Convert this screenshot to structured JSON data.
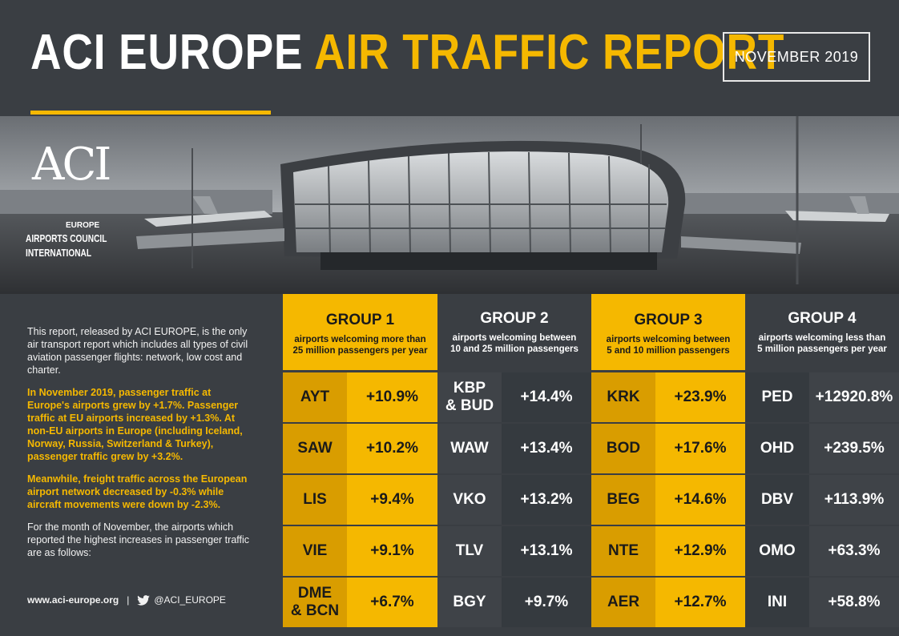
{
  "header": {
    "title_white": "ACI EUROPE",
    "title_yellow": "AIR TRAFFIC REPORT",
    "date": "NOVEMBER 2019"
  },
  "logo": {
    "mark": "ACI",
    "region": "EUROPE",
    "line1": "AIRPORTS COUNCIL",
    "line2": "INTERNATIONAL"
  },
  "intro": {
    "p1": "This report, released by ACI EUROPE, is the only air transport report which includes all types of civil aviation passenger flights: network, low cost and charter.",
    "p2": "In November 2019, passenger traffic at Europe's airports grew by +1.7%. Passenger traffic at EU airports increased by +1.3%. At non-EU airports in Europe (including Iceland, Norway, Russia, Switzerland & Turkey), passenger traffic grew by +3.2%.",
    "p3": "Meanwhile, freight traffic across  the European airport network decreased by -0.3%  while aircraft movements were down by -2.3%.",
    "p4": "For the month of November,  the airports which reported the highest increases in passenger traffic are as follows:"
  },
  "footer": {
    "website": "www.aci-europe.org",
    "separator": "|",
    "twitter": "@ACI_EUROPE"
  },
  "colors": {
    "accent": "#f5b800",
    "accent_dark": "#d99d00",
    "background": "#3a3e43"
  },
  "groups": [
    {
      "name": "GROUP 1",
      "desc1": "airports welcoming more than",
      "desc2": "25 million  passengers per year",
      "rows": [
        {
          "code": "AYT",
          "pct": "+10.9%"
        },
        {
          "code": "SAW",
          "pct": "+10.2%"
        },
        {
          "code": "LIS",
          "pct": "+9.4%"
        },
        {
          "code": "VIE",
          "pct": "+9.1%"
        },
        {
          "code": "DME\n& BCN",
          "pct": "+6.7%"
        }
      ]
    },
    {
      "name": "GROUP 2",
      "desc1": "airports welcoming between",
      "desc2": "10 and 25 million passengers",
      "rows": [
        {
          "code": "KBP\n& BUD",
          "pct": "+14.4%"
        },
        {
          "code": "WAW",
          "pct": "+13.4%"
        },
        {
          "code": "VKO",
          "pct": "+13.2%"
        },
        {
          "code": "TLV",
          "pct": "+13.1%"
        },
        {
          "code": "BGY",
          "pct": "+9.7%"
        }
      ]
    },
    {
      "name": "GROUP 3",
      "desc1": "airports welcoming between",
      "desc2": "5 and 10 million passengers",
      "rows": [
        {
          "code": "KRK",
          "pct": "+23.9%"
        },
        {
          "code": "BOD",
          "pct": "+17.6%"
        },
        {
          "code": "BEG",
          "pct": "+14.6%"
        },
        {
          "code": "NTE",
          "pct": "+12.9%"
        },
        {
          "code": "AER",
          "pct": "+12.7%"
        }
      ]
    },
    {
      "name": "GROUP 4",
      "desc1": "airports welcoming less than",
      "desc2": "5 million passengers per year",
      "rows": [
        {
          "code": "PED",
          "pct": "+12920.8%"
        },
        {
          "code": "OHD",
          "pct": "+239.5%"
        },
        {
          "code": "DBV",
          "pct": "+113.9%"
        },
        {
          "code": "OMO",
          "pct": "+63.3%"
        },
        {
          "code": "INI",
          "pct": "+58.8%"
        }
      ]
    }
  ]
}
